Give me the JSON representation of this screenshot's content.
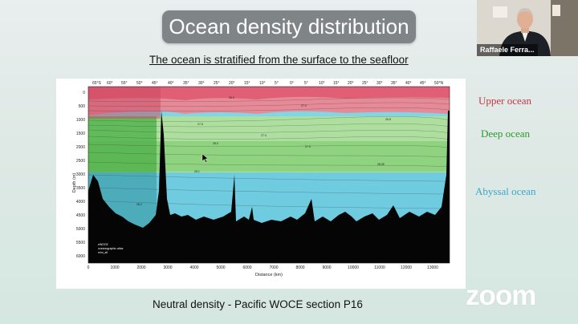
{
  "slide": {
    "title": "Ocean density distribution",
    "subtitle": "The ocean is stratified from the surface to the seafloor",
    "caption": "Neutral density - Pacific WOCE section P16",
    "layers": {
      "upper": "Upper ocean",
      "deep": "Deep ocean",
      "abyssal": "Abyssal ocean"
    },
    "colors": {
      "upper": "#c23844",
      "deep": "#2d9a2d",
      "abyssal": "#3aa7c8"
    }
  },
  "figure": {
    "lat_ticks": [
      "65°S",
      "60°",
      "55°",
      "50°",
      "45°",
      "40°",
      "35°",
      "30°",
      "25°",
      "20°",
      "15°",
      "10°",
      "5°",
      "0°",
      "5°",
      "10°",
      "15°",
      "20°",
      "25°",
      "30°",
      "35°",
      "40°",
      "45°",
      "50°N"
    ],
    "depth_ticks": [
      "0",
      "500",
      "1000",
      "1500",
      "2000",
      "2500",
      "3000",
      "3500",
      "4000",
      "4500",
      "5000",
      "5500",
      "6000"
    ],
    "distance_ticks": [
      "0",
      "1000",
      "2000",
      "3000",
      "4000",
      "5000",
      "6000",
      "7000",
      "8000",
      "9000",
      "10000",
      "11000",
      "12000",
      "13000"
    ],
    "xlabel": "Distance (km)",
    "ylabel": "Depth (m)",
    "iso_labels": [
      "26.0",
      "27.0",
      "27.5",
      "28.0",
      "26.8",
      "27.4",
      "27.9",
      "28.05",
      "28.1",
      "28.2"
    ],
    "logo_text": [
      "eWOCE",
      "oceanographic atlas",
      "shm_all"
    ]
  },
  "video": {
    "participant_name": "Raffaele Ferra..."
  },
  "app": {
    "logo": "zoom"
  }
}
